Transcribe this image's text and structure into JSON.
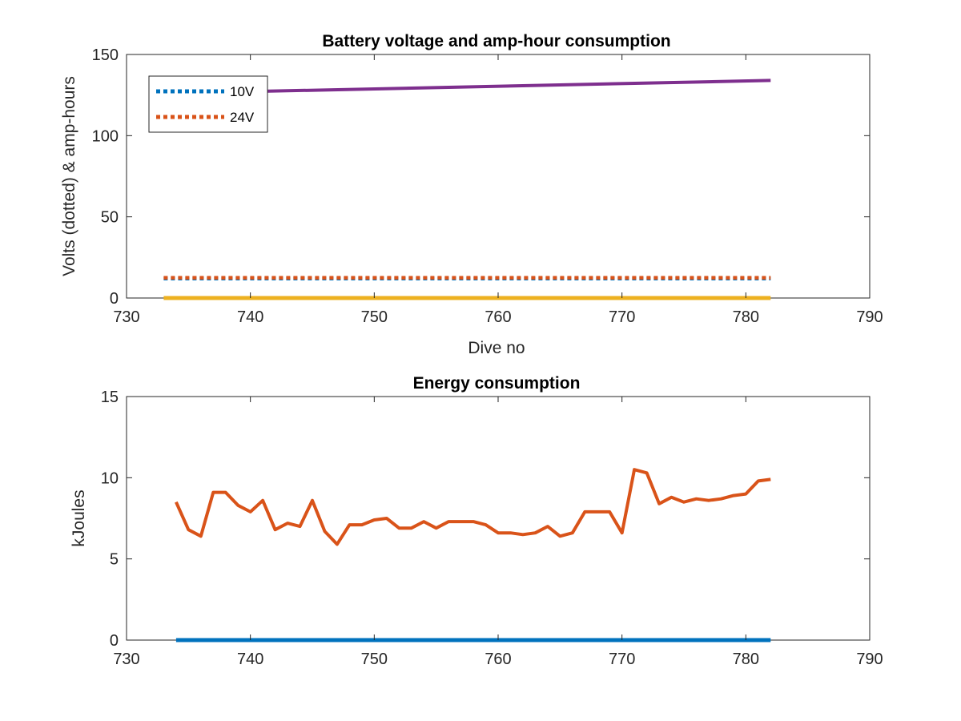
{
  "chart_data": [
    {
      "type": "line",
      "title": "Battery voltage and amp-hour consumption",
      "xlabel": "Dive no",
      "ylabel": "Volts (dotted) & amp-hours",
      "xlim": [
        730,
        790
      ],
      "ylim": [
        0,
        150
      ],
      "xticks": [
        "730",
        "740",
        "750",
        "760",
        "770",
        "780",
        "790"
      ],
      "yticks": [
        "0",
        "50",
        "100",
        "150"
      ],
      "legend": {
        "placement": "top-left",
        "entries": [
          "10V",
          "24V"
        ]
      },
      "grid": false,
      "series": [
        {
          "name": "10V",
          "style": "dotted",
          "color": "#0072BD",
          "x": [
            733,
            782
          ],
          "y": [
            12,
            12
          ]
        },
        {
          "name": "24V",
          "style": "dotted",
          "color": "#D95319",
          "x": [
            733,
            782
          ],
          "y": [
            12.5,
            12.5
          ]
        },
        {
          "style": "solid",
          "color": "#EDB120",
          "x": [
            733,
            782
          ],
          "y": [
            0,
            0
          ]
        },
        {
          "style": "solid",
          "color": "#7E2F8E",
          "x": [
            733,
            782
          ],
          "y": [
            126,
            134
          ]
        }
      ]
    },
    {
      "type": "line",
      "title": "Energy consumption",
      "xlabel": "",
      "ylabel": "kJoules",
      "xlim": [
        730,
        790
      ],
      "ylim": [
        0,
        15
      ],
      "xticks": [
        "730",
        "740",
        "750",
        "760",
        "770",
        "780",
        "790"
      ],
      "yticks": [
        "0",
        "5",
        "10",
        "15"
      ],
      "grid": false,
      "series": [
        {
          "style": "solid",
          "color": "#0072BD",
          "x": [
            734,
            782
          ],
          "y": [
            0,
            0
          ]
        },
        {
          "style": "solid",
          "color": "#D95319",
          "x": [
            734,
            735,
            736,
            737,
            738,
            739,
            740,
            741,
            742,
            743,
            744,
            745,
            746,
            747,
            748,
            749,
            750,
            751,
            752,
            753,
            754,
            755,
            756,
            757,
            758,
            759,
            760,
            761,
            762,
            763,
            764,
            765,
            766,
            767,
            768,
            769,
            770,
            771,
            772,
            773,
            774,
            775,
            776,
            777,
            778,
            779,
            780,
            781,
            782
          ],
          "y": [
            8.5,
            6.8,
            6.4,
            9.1,
            9.1,
            8.3,
            7.9,
            8.6,
            6.8,
            7.2,
            7.0,
            8.6,
            6.7,
            5.9,
            7.1,
            7.1,
            7.4,
            7.5,
            6.9,
            6.9,
            7.3,
            6.9,
            7.3,
            7.3,
            7.3,
            7.1,
            6.6,
            6.6,
            6.5,
            6.6,
            7.0,
            6.4,
            6.6,
            7.9,
            7.9,
            7.9,
            6.6,
            10.5,
            10.3,
            8.4,
            8.8,
            8.5,
            8.7,
            8.6,
            8.7,
            8.9,
            9.0,
            9.8,
            9.9
          ]
        }
      ]
    }
  ]
}
